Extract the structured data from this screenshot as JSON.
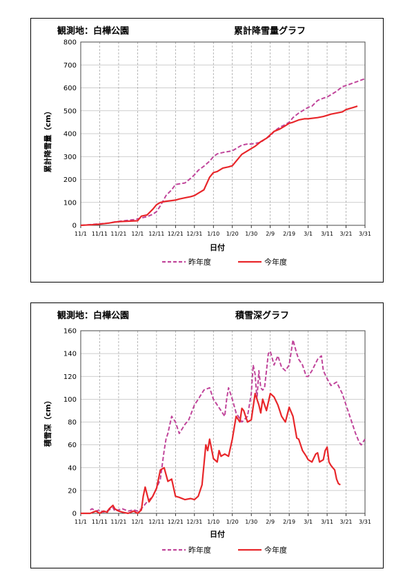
{
  "chart_data": [
    {
      "type": "line",
      "station": "観測地：白樺公園",
      "title": "累計降雪量グラフ",
      "ylabel": "累計降雪量（cm）",
      "xlabel": "日付",
      "ylim": [
        0,
        800
      ],
      "yticks": [
        0,
        100,
        200,
        300,
        400,
        500,
        600,
        700,
        800
      ],
      "xlim": [
        0,
        150
      ],
      "xticks": [
        0,
        10,
        20,
        30,
        40,
        50,
        60,
        70,
        80,
        90,
        100,
        110,
        120,
        130,
        140,
        150
      ],
      "xtick_labels": [
        "11/1",
        "11/11",
        "11/21",
        "12/1",
        "12/11",
        "12/21",
        "12/31",
        "1/10",
        "1/20",
        "1/30",
        "2/9",
        "2/19",
        "3/1",
        "3/11",
        "3/21",
        "3/31"
      ],
      "grid": true,
      "legend_position": "bottom",
      "series": [
        {
          "name": "昨年度",
          "color": "#c0449a",
          "dash": true,
          "x": [
            0,
            5,
            8,
            12,
            15,
            18,
            20,
            25,
            28,
            30,
            35,
            38,
            40,
            42,
            45,
            48,
            50,
            55,
            58,
            60,
            62,
            65,
            68,
            70,
            72,
            75,
            78,
            80,
            82,
            85,
            88,
            90,
            92,
            95,
            97,
            100,
            102,
            105,
            108,
            110,
            112,
            115,
            118,
            120,
            122,
            125,
            128,
            130,
            132,
            135,
            138,
            140,
            145,
            150
          ],
          "y": [
            0,
            3,
            5,
            8,
            10,
            15,
            17,
            22,
            25,
            28,
            38,
            48,
            60,
            85,
            130,
            155,
            178,
            185,
            205,
            220,
            240,
            258,
            280,
            300,
            312,
            318,
            322,
            325,
            335,
            350,
            355,
            355,
            358,
            362,
            375,
            390,
            410,
            428,
            440,
            450,
            470,
            490,
            505,
            515,
            520,
            545,
            555,
            560,
            570,
            585,
            605,
            610,
            625,
            640
          ]
        },
        {
          "name": "今年度",
          "color": "#e8262a",
          "dash": false,
          "x": [
            0,
            5,
            10,
            15,
            18,
            20,
            25,
            30,
            32,
            35,
            38,
            40,
            42,
            45,
            48,
            50,
            52,
            55,
            58,
            60,
            62,
            65,
            68,
            70,
            72,
            75,
            78,
            80,
            82,
            85,
            88,
            90,
            92,
            95,
            98,
            100,
            102,
            105,
            108,
            110,
            112,
            115,
            118,
            120,
            125,
            128,
            130,
            132,
            135,
            138,
            140,
            142,
            144,
            146
          ],
          "y": [
            0,
            2,
            5,
            10,
            14,
            16,
            18,
            20,
            40,
            45,
            70,
            90,
            100,
            105,
            108,
            110,
            115,
            120,
            125,
            130,
            140,
            155,
            210,
            230,
            235,
            250,
            255,
            260,
            280,
            310,
            325,
            335,
            345,
            365,
            380,
            395,
            410,
            420,
            435,
            445,
            450,
            460,
            465,
            465,
            470,
            475,
            480,
            485,
            490,
            495,
            505,
            510,
            515,
            520
          ]
        }
      ]
    },
    {
      "type": "line",
      "station": "観測地：白樺公園",
      "title": "積雪深グラフ",
      "ylabel": "積雪深（cm）",
      "xlabel": "日付",
      "ylim": [
        0,
        160
      ],
      "yticks": [
        0,
        20,
        40,
        60,
        80,
        100,
        120,
        140,
        160
      ],
      "xlim": [
        0,
        150
      ],
      "xticks": [
        0,
        10,
        20,
        30,
        40,
        50,
        60,
        70,
        80,
        90,
        100,
        110,
        120,
        130,
        140,
        150
      ],
      "xtick_labels": [
        "11/1",
        "11/11",
        "11/21",
        "12/1",
        "12/11",
        "12/21",
        "12/31",
        "1/10",
        "1/20",
        "1/30",
        "2/9",
        "2/19",
        "3/1",
        "3/11",
        "3/21",
        "3/31"
      ],
      "grid": true,
      "legend_position": "bottom",
      "series": [
        {
          "name": "昨年度",
          "color": "#c0449a",
          "dash": true,
          "x": [
            5,
            6,
            8,
            10,
            12,
            15,
            17,
            18,
            20,
            22,
            25,
            28,
            30,
            32,
            35,
            38,
            40,
            42,
            44,
            45,
            46,
            48,
            50,
            52,
            55,
            57,
            60,
            62,
            65,
            68,
            70,
            72,
            74,
            76,
            77,
            78,
            80,
            82,
            85,
            88,
            90,
            91,
            92,
            93,
            94,
            95,
            96,
            97,
            98,
            99,
            100,
            102,
            104,
            106,
            108,
            110,
            112,
            114,
            115,
            117,
            119,
            120,
            122,
            125,
            127,
            128,
            130,
            132,
            135,
            138,
            140,
            143,
            145,
            147,
            148,
            150
          ],
          "y": [
            3,
            4,
            2,
            3,
            1,
            3,
            5,
            2,
            3,
            4,
            2,
            3,
            2,
            4,
            10,
            15,
            22,
            30,
            55,
            65,
            70,
            85,
            80,
            70,
            78,
            82,
            95,
            100,
            108,
            110,
            100,
            95,
            90,
            85,
            100,
            110,
            100,
            88,
            80,
            85,
            105,
            130,
            122,
            100,
            125,
            110,
            108,
            110,
            125,
            140,
            142,
            130,
            138,
            128,
            125,
            130,
            152,
            140,
            135,
            130,
            120,
            120,
            125,
            135,
            138,
            125,
            118,
            112,
            115,
            105,
            95,
            80,
            70,
            62,
            60,
            65
          ]
        },
        {
          "name": "今年度",
          "color": "#e8262a",
          "dash": false,
          "x": [
            0,
            5,
            8,
            10,
            12,
            14,
            15,
            17,
            18,
            20,
            22,
            25,
            28,
            30,
            32,
            33,
            34,
            36,
            38,
            40,
            42,
            44,
            46,
            48,
            50,
            52,
            55,
            58,
            60,
            62,
            64,
            66,
            67,
            68,
            70,
            72,
            73,
            74,
            76,
            78,
            80,
            82,
            84,
            85,
            86,
            88,
            90,
            92,
            94,
            95,
            96,
            98,
            100,
            102,
            104,
            105,
            106,
            108,
            110,
            112,
            114,
            115,
            117,
            119,
            120,
            122,
            124,
            125,
            126,
            128,
            129,
            130,
            131,
            132,
            133,
            134,
            135,
            136,
            137
          ],
          "y": [
            0,
            0,
            2,
            0,
            2,
            1,
            4,
            7,
            4,
            2,
            1,
            0,
            2,
            0,
            3,
            15,
            23,
            10,
            15,
            22,
            38,
            40,
            28,
            30,
            15,
            14,
            12,
            13,
            12,
            15,
            25,
            60,
            55,
            65,
            48,
            45,
            55,
            50,
            52,
            50,
            65,
            85,
            80,
            92,
            90,
            80,
            82,
            105,
            95,
            88,
            100,
            90,
            105,
            102,
            95,
            90,
            85,
            80,
            93,
            85,
            66,
            65,
            55,
            50,
            47,
            45,
            52,
            53,
            45,
            47,
            55,
            58,
            45,
            42,
            40,
            38,
            30,
            26,
            25
          ]
        }
      ]
    }
  ]
}
